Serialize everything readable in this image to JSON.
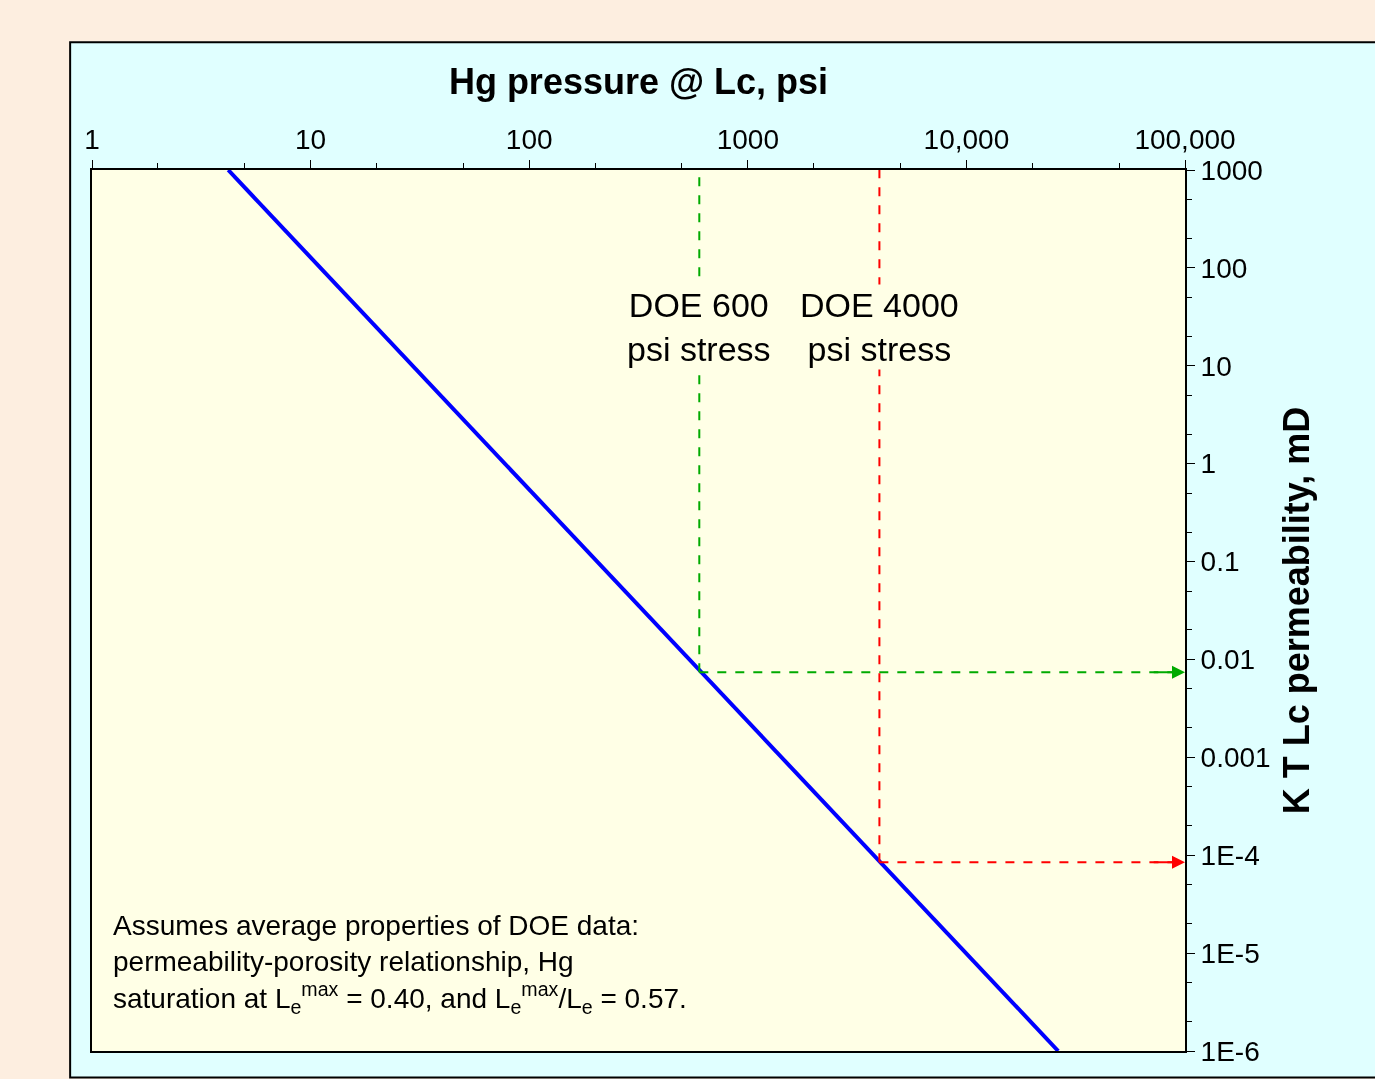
{
  "chart_data": {
    "type": "line",
    "xlabel": "Hg pressure @ Lc, psi",
    "ylabel": "K T Lc permeability, mD",
    "log": "xy",
    "grid": false,
    "marker": "none",
    "line_style": "solid",
    "x": [
      4.2,
      26300
    ],
    "series": [
      {
        "color": "#0000ff",
        "values": [
          1000,
          1e-06
        ]
      }
    ],
    "xlim": [
      1,
      100000
    ],
    "xticks": [
      1,
      10,
      100,
      1000,
      {
        "value": 10000,
        "label": "10,000"
      },
      {
        "value": 100000,
        "label": "100,000"
      }
    ],
    "ylim": [
      1e-06,
      1000
    ],
    "yticks": [
      1000,
      100,
      10,
      1,
      0.1,
      0.01,
      0.001,
      {
        "value": 0.0001,
        "label": "1E-4"
      },
      {
        "value": 1e-05,
        "label": "1E-5"
      },
      {
        "value": 1e-06,
        "label": "1E-6"
      }
    ],
    "ref_lines": [
      {
        "axis": "x",
        "value": 600,
        "label": "DOE 600\npsi stress",
        "color": "#00aa00",
        "line_style": "dashed"
      },
      {
        "axis": "y",
        "value": 0.0074,
        "color": "#00aa00",
        "line_style": "dashed"
      },
      {
        "axis": "x",
        "value": 4000,
        "label": "DOE 4000\npsi stress",
        "color": "#ff0000",
        "line_style": "dashed"
      },
      {
        "axis": "y",
        "value": 8.5e-05,
        "color": "#ff0000",
        "line_style": "dashed"
      }
    ],
    "annotations": [
      "Assumes average properties of DOE data:\npermeability-porosity relationship, Hg\nsaturation at L$_{e}$$^{max}$ = 0.40, and L$_{e}$$^{max}$/L$_{e}$ = 0.57."
    ]
  }
}
